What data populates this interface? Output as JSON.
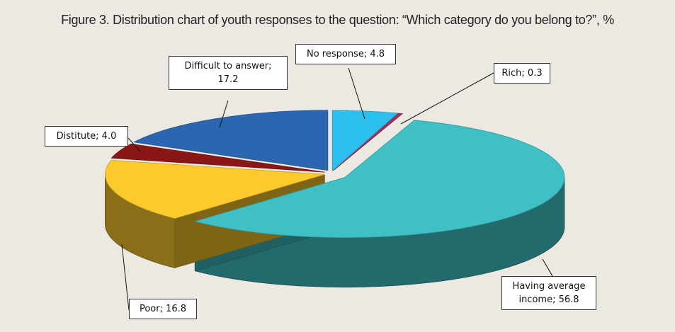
{
  "chart_data": {
    "type": "pie",
    "title": "Figure 3. Distribution chart of youth responses to the question: “Which category do you belong to?”, %",
    "values": [
      4.8,
      0.3,
      56.8,
      16.8,
      4.0,
      17.2
    ],
    "value_labels": [
      "No response; 4.8",
      "Rich; 0.3",
      "Having average income; 56.8",
      "Poor; 16.8",
      "Distitute; 4.0",
      "Difficult to answer; 17.2"
    ],
    "colors": [
      "#2cc0ef",
      "#a0305f",
      "#3fc0c4",
      "#fbca2c",
      "#8a1616",
      "#2b67b1"
    ]
  }
}
